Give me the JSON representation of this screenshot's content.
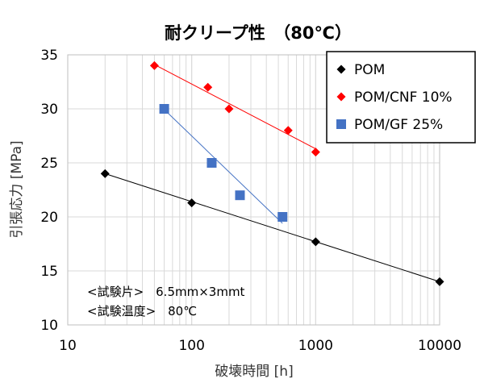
{
  "chart_data": {
    "type": "scatter",
    "title": "耐クリープ性　（80℃）",
    "xlabel": "破壊時間 [h]",
    "ylabel": "引張応力 [MPa]",
    "xscale": "log",
    "xlim": [
      10,
      10000
    ],
    "ylim": [
      10,
      35
    ],
    "x_ticks": [
      10,
      100,
      1000,
      10000
    ],
    "x_tick_labels": [
      "10",
      "100",
      "1000",
      "10000"
    ],
    "y_ticks": [
      10,
      15,
      20,
      25,
      30,
      35
    ],
    "y_tick_labels": [
      "10",
      "15",
      "20",
      "25",
      "30",
      "35"
    ],
    "grid": true,
    "legend_position": "top-right",
    "series": [
      {
        "name": "POM",
        "color": "#000000",
        "marker": "diamond",
        "points": [
          {
            "x": 20,
            "y": 24
          },
          {
            "x": 100,
            "y": 21.3
          },
          {
            "x": 1000,
            "y": 17.7
          },
          {
            "x": 10000,
            "y": 14
          }
        ],
        "trendline": [
          {
            "x": 20,
            "y": 24
          },
          {
            "x": 10000,
            "y": 14
          }
        ]
      },
      {
        "name": "POM/CNF 10%",
        "color": "#ff0000",
        "marker": "diamond",
        "points": [
          {
            "x": 50,
            "y": 34
          },
          {
            "x": 135,
            "y": 32
          },
          {
            "x": 200,
            "y": 30
          },
          {
            "x": 600,
            "y": 28
          },
          {
            "x": 1000,
            "y": 26
          }
        ],
        "trendline": [
          {
            "x": 50,
            "y": 34.1
          },
          {
            "x": 1000,
            "y": 26.3
          }
        ]
      },
      {
        "name": "POM/GF 25%",
        "color": "#4472c4",
        "marker": "square",
        "points": [
          {
            "x": 60,
            "y": 30
          },
          {
            "x": 145,
            "y": 25
          },
          {
            "x": 245,
            "y": 22
          },
          {
            "x": 540,
            "y": 20
          }
        ],
        "trendline": [
          {
            "x": 58,
            "y": 30.1
          },
          {
            "x": 540,
            "y": 19.4
          }
        ]
      }
    ],
    "annotations": [
      "<試験片>　6.5mm×3mmt",
      "<試験温度>　80℃"
    ]
  }
}
